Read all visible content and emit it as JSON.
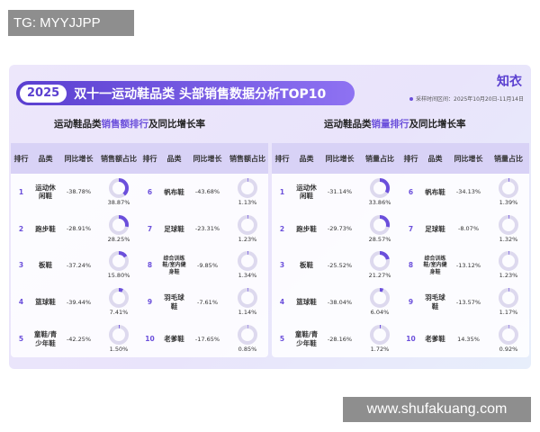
{
  "watermarks": {
    "top": "TG: MYYJJPP",
    "bottom": "www.shufakuang.com"
  },
  "header": {
    "year": "2025",
    "title": "双十一运动鞋品类 头部销售数据分析TOP10",
    "brand": "知衣",
    "date_range": "采样时间区间：2025年10月20日-11月14日"
  },
  "colors": {
    "accent": "#6b4fdb",
    "pie_track": "#ddd9ee"
  },
  "left_section": {
    "subtitle_pre": "运动鞋品类",
    "subtitle_hl": "销售额排行",
    "subtitle_post": "及同比增长率",
    "headers": [
      "排行",
      "品类",
      "同比增长",
      "销售额占比",
      "排行",
      "品类",
      "同比增长",
      "销售额占比"
    ]
  },
  "right_section": {
    "subtitle_pre": "运动鞋品类",
    "subtitle_hl": "销量排行",
    "subtitle_post": "及同比增长率",
    "headers": [
      "排行",
      "品类",
      "同比增长",
      "销量占比",
      "排行",
      "品类",
      "同比增长",
      "销量占比"
    ]
  },
  "chart_data": [
    {
      "type": "table",
      "title": "运动鞋品类销售额排行及同比增长率",
      "columns": [
        "排行",
        "品类",
        "同比增长",
        "销售额占比"
      ],
      "rows": [
        {
          "rank": "1",
          "category": "运动休闲鞋",
          "growth": "-38.78%",
          "share": 38.87,
          "share_label": "38.87%"
        },
        {
          "rank": "2",
          "category": "跑步鞋",
          "growth": "-28.91%",
          "share": 28.25,
          "share_label": "28.25%"
        },
        {
          "rank": "3",
          "category": "板鞋",
          "growth": "-37.24%",
          "share": 15.8,
          "share_label": "15.80%"
        },
        {
          "rank": "4",
          "category": "篮球鞋",
          "growth": "-39.44%",
          "share": 7.41,
          "share_label": "7.41%"
        },
        {
          "rank": "5",
          "category": "童鞋/青少年鞋",
          "growth": "-42.25%",
          "share": 1.5,
          "share_label": "1.50%"
        },
        {
          "rank": "6",
          "category": "帆布鞋",
          "growth": "-43.68%",
          "share": 1.13,
          "share_label": "1.13%"
        },
        {
          "rank": "7",
          "category": "足球鞋",
          "growth": "-23.31%",
          "share": 1.23,
          "share_label": "1.23%"
        },
        {
          "rank": "8",
          "category": "综合训练鞋/室内健身鞋",
          "growth": "-9.85%",
          "share": 1.34,
          "share_label": "1.34%"
        },
        {
          "rank": "9",
          "category": "羽毛球鞋",
          "growth": "-7.61%",
          "share": 1.14,
          "share_label": "1.14%"
        },
        {
          "rank": "10",
          "category": "老爹鞋",
          "growth": "-17.65%",
          "share": 0.85,
          "share_label": "0.85%"
        }
      ]
    },
    {
      "type": "table",
      "title": "运动鞋品类销量排行及同比增长率",
      "columns": [
        "排行",
        "品类",
        "同比增长",
        "销量占比"
      ],
      "rows": [
        {
          "rank": "1",
          "category": "运动休闲鞋",
          "growth": "-31.14%",
          "share": 33.86,
          "share_label": "33.86%"
        },
        {
          "rank": "2",
          "category": "跑步鞋",
          "growth": "-29.73%",
          "share": 28.57,
          "share_label": "28.57%"
        },
        {
          "rank": "3",
          "category": "板鞋",
          "growth": "-25.52%",
          "share": 21.27,
          "share_label": "21.27%"
        },
        {
          "rank": "4",
          "category": "篮球鞋",
          "growth": "-38.04%",
          "share": 6.04,
          "share_label": "6.04%"
        },
        {
          "rank": "5",
          "category": "童鞋/青少年鞋",
          "growth": "-28.16%",
          "share": 1.72,
          "share_label": "1.72%"
        },
        {
          "rank": "6",
          "category": "帆布鞋",
          "growth": "-34.13%",
          "share": 1.39,
          "share_label": "1.39%"
        },
        {
          "rank": "7",
          "category": "足球鞋",
          "growth": "-8.07%",
          "share": 1.32,
          "share_label": "1.32%"
        },
        {
          "rank": "8",
          "category": "综合训练鞋/室内健身鞋",
          "growth": "-13.12%",
          "share": 1.23,
          "share_label": "1.23%"
        },
        {
          "rank": "9",
          "category": "羽毛球鞋",
          "growth": "-13.57%",
          "share": 1.17,
          "share_label": "1.17%"
        },
        {
          "rank": "10",
          "category": "老爹鞋",
          "growth": "14.35%",
          "share": 0.92,
          "share_label": "0.92%"
        }
      ]
    }
  ]
}
